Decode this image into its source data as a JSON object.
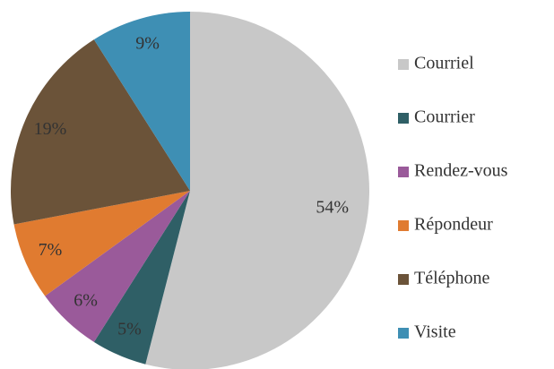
{
  "chart_data": {
    "type": "pie",
    "categories": [
      "Courriel",
      "Courrier",
      "Rendez-vous",
      "Répondeur",
      "Téléphone",
      "Visite"
    ],
    "values": [
      54,
      5,
      6,
      7,
      19,
      9
    ],
    "value_labels": [
      "54%",
      "5%",
      "6%",
      "7%",
      "19%",
      "9%"
    ],
    "colors": [
      "#c8c8c8",
      "#2f5f66",
      "#9a5a9a",
      "#e07b30",
      "#6b5339",
      "#3e8fb4"
    ],
    "legend": "right"
  }
}
